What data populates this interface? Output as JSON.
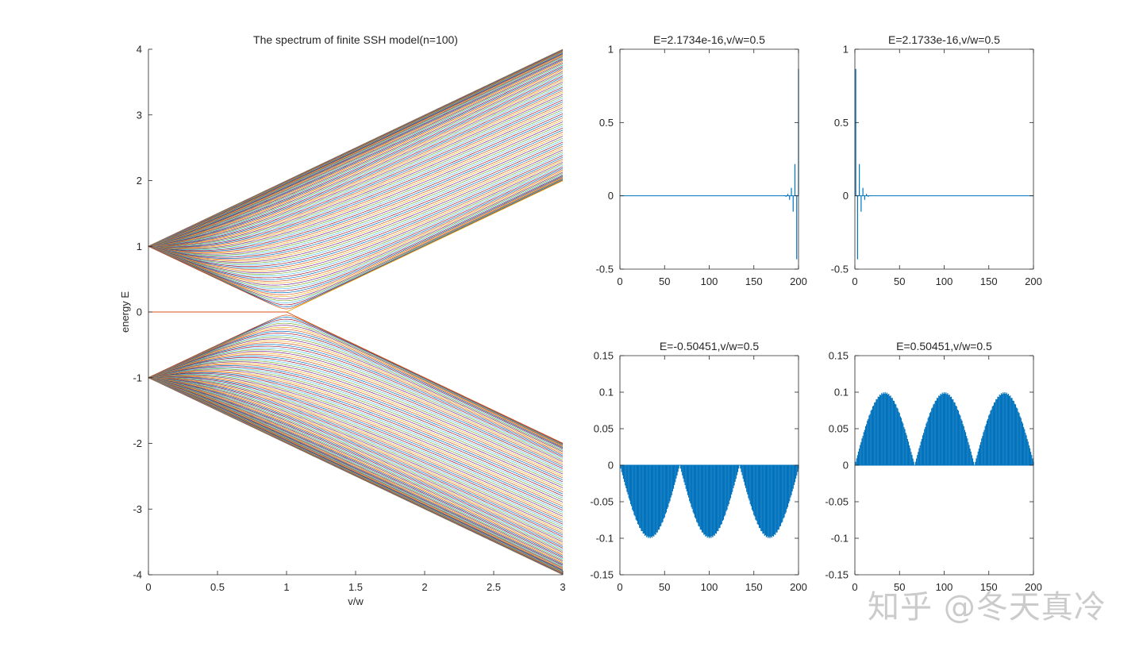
{
  "watermark": "知乎 @冬天真冷",
  "colors": {
    "axis": "#262626",
    "stem": "#0072bd",
    "matlab_order": [
      "#0072bd",
      "#d95319",
      "#edb120",
      "#7e2f8e",
      "#77ac30",
      "#4dbeee",
      "#a2142f"
    ]
  },
  "chart_data": [
    {
      "id": "spectrum",
      "type": "line",
      "title": "The spectrum of finite SSH model(n=100)",
      "xlabel": "v/w",
      "ylabel": "energy E",
      "xlim": [
        0,
        3
      ],
      "ylim": [
        -4,
        4
      ],
      "xticks": [
        0,
        0.5,
        1,
        1.5,
        2,
        2.5,
        3
      ],
      "xticklabels": [
        "0",
        "0.5",
        "1",
        "1.5",
        "2",
        "2.5",
        "3"
      ],
      "yticks": [
        -4,
        -3,
        -2,
        -1,
        0,
        1,
        2,
        3,
        4
      ],
      "yticklabels": [
        "-4",
        "-3",
        "-2",
        "-1",
        "0",
        "1",
        "2",
        "3",
        "4"
      ],
      "model": {
        "n_cells": 100,
        "w": 1,
        "v_range": [
          0,
          3
        ],
        "bands": 2
      },
      "grid": false,
      "legend": "none"
    },
    {
      "id": "edge-right",
      "type": "stem",
      "title": "E=2.1734e-16,v/w=0.5",
      "xlim": [
        0,
        200
      ],
      "ylim": [
        -0.5,
        1
      ],
      "xticks": [
        0,
        50,
        100,
        150,
        200
      ],
      "xticklabels": [
        "0",
        "50",
        "100",
        "150",
        "200"
      ],
      "yticks": [
        -0.5,
        0,
        0.5,
        1
      ],
      "yticklabels": [
        "-0.5",
        "0",
        "0.5",
        "1"
      ],
      "state": {
        "kind": "edge",
        "side": "right",
        "amplitude": 0.866,
        "ratio": 0.5
      }
    },
    {
      "id": "edge-left",
      "type": "stem",
      "title": "E=2.1733e-16,v/w=0.5",
      "xlim": [
        0,
        200
      ],
      "ylim": [
        -0.5,
        1
      ],
      "xticks": [
        0,
        50,
        100,
        150,
        200
      ],
      "xticklabels": [
        "0",
        "50",
        "100",
        "150",
        "200"
      ],
      "yticks": [
        -0.5,
        0,
        0.5,
        1
      ],
      "yticklabels": [
        "-0.5",
        "0",
        "0.5",
        "1"
      ],
      "state": {
        "kind": "edge",
        "side": "left",
        "amplitude": 0.866,
        "ratio": 0.5
      }
    },
    {
      "id": "bulk-neg",
      "type": "stem",
      "title": "E=-0.50451,v/w=0.5",
      "xlim": [
        0,
        200
      ],
      "ylim": [
        -0.15,
        0.15
      ],
      "xticks": [
        0,
        50,
        100,
        150,
        200
      ],
      "xticklabels": [
        "0",
        "50",
        "100",
        "150",
        "200"
      ],
      "yticks": [
        -0.15,
        -0.1,
        -0.05,
        0,
        0.05,
        0.1,
        0.15
      ],
      "yticklabels": [
        "-0.15",
        "-0.1",
        "-0.05",
        "0",
        "0.05",
        "0.1",
        "0.15"
      ],
      "state": {
        "kind": "bulk",
        "amplitude": 0.1,
        "half_periods": 3,
        "sign": -1
      }
    },
    {
      "id": "bulk-pos",
      "type": "stem",
      "title": "E=0.50451,v/w=0.5",
      "xlim": [
        0,
        200
      ],
      "ylim": [
        -0.15,
        0.15
      ],
      "xticks": [
        0,
        50,
        100,
        150,
        200
      ],
      "xticklabels": [
        "0",
        "50",
        "100",
        "150",
        "200"
      ],
      "yticks": [
        -0.15,
        -0.1,
        -0.05,
        0,
        0.05,
        0.1,
        0.15
      ],
      "yticklabels": [
        "-0.15",
        "-0.1",
        "-0.05",
        "0",
        "0.05",
        "0.1",
        "0.15"
      ],
      "state": {
        "kind": "bulk",
        "amplitude": 0.1,
        "half_periods": 3,
        "sign": 1
      }
    }
  ]
}
